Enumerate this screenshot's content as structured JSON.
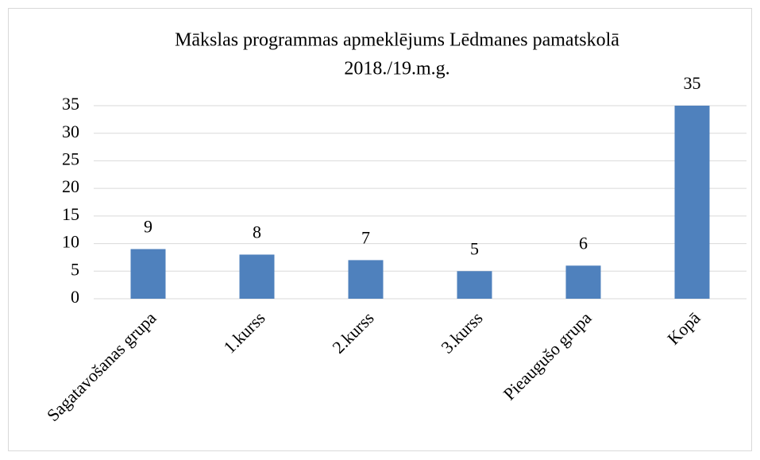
{
  "chart_data": {
    "type": "bar",
    "title": [
      "Mākslas programmas apmeklējums Lēdmanes pamatskolā",
      "2018./19.m.g."
    ],
    "categories": [
      "Sagatavošanas grupa",
      "1.kurss",
      "2.kurss",
      "3.kurss",
      "Pieaugušo grupa",
      "Kopā"
    ],
    "values": [
      9,
      8,
      7,
      5,
      6,
      35
    ],
    "color": "#4f81bd",
    "ylim": [
      0,
      35
    ],
    "yticks": [
      0,
      5,
      10,
      15,
      20,
      25,
      30,
      35
    ],
    "grid": true
  }
}
